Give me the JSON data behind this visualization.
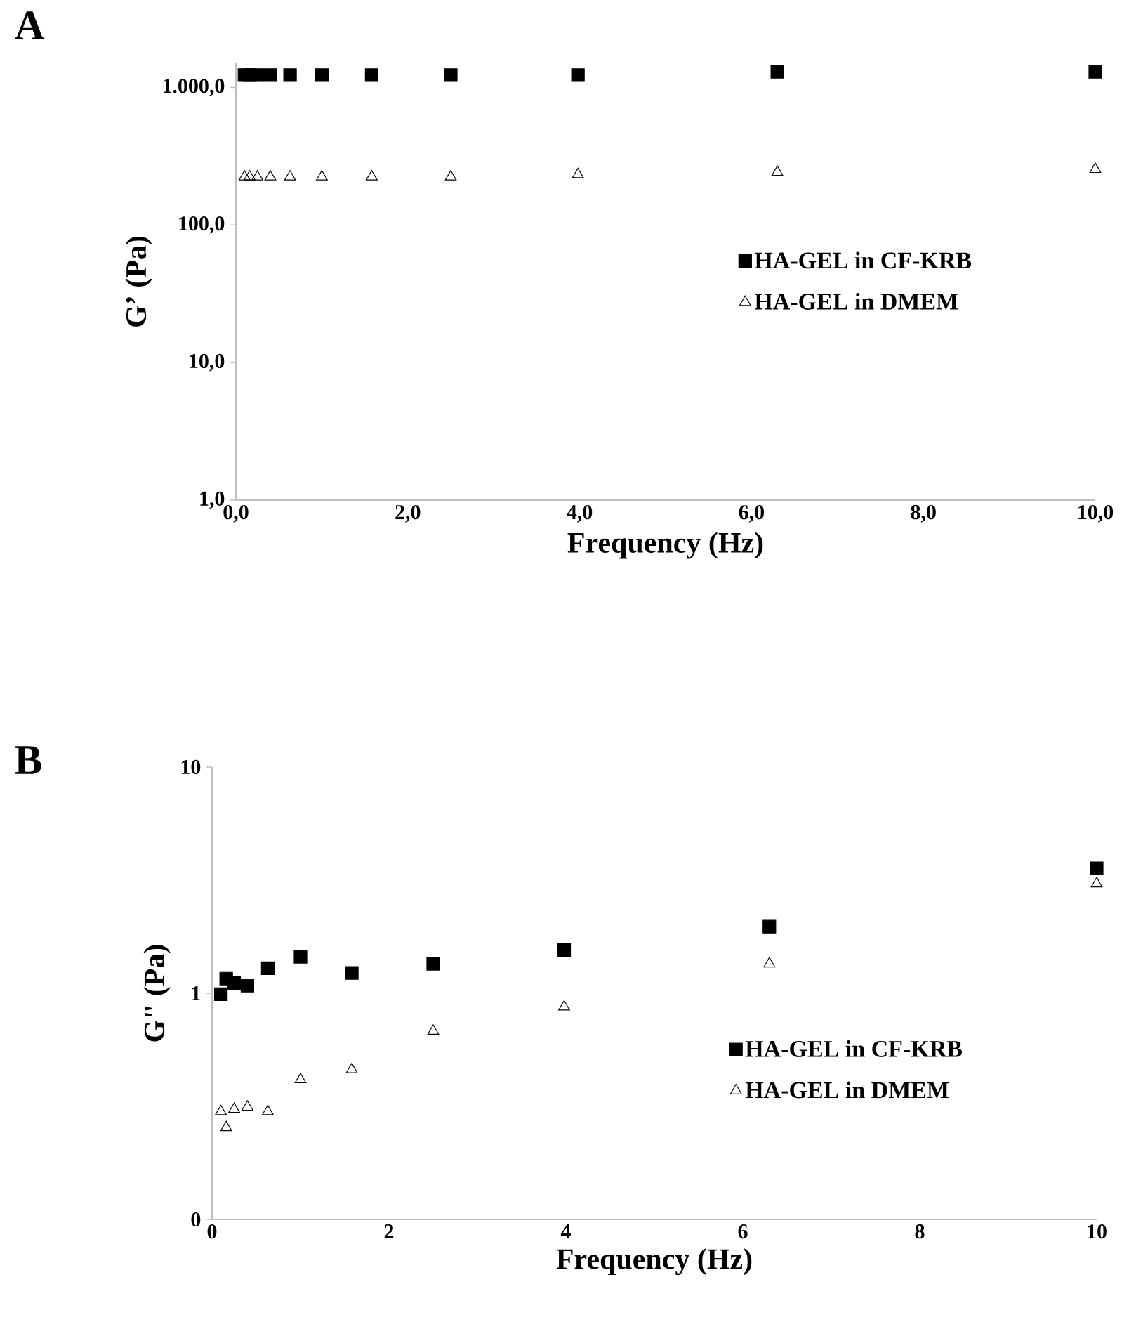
{
  "chart_data": [
    {
      "type": "scatter",
      "title": "A",
      "xlabel": "Frequency (Hz)",
      "ylabel": "G’ (Pa)",
      "log": "y",
      "legend": "right",
      "grid": false,
      "x": [
        0.1,
        0.16,
        0.25,
        0.4,
        0.63,
        1,
        1.58,
        2.5,
        3.98,
        6.3,
        10
      ],
      "xlim": [
        0,
        10
      ],
      "xticks": [
        {
          "value": 0,
          "label": "0,0"
        },
        {
          "value": 2,
          "label": "2,0"
        },
        {
          "value": 4,
          "label": "4,0"
        },
        {
          "value": 6,
          "label": "6,0"
        },
        {
          "value": 8,
          "label": "8,0"
        },
        {
          "value": 10,
          "label": "10,0"
        }
      ],
      "ylim": [
        1,
        1500
      ],
      "yticks": [
        {
          "value": 1,
          "label": "1,0"
        },
        {
          "value": 10,
          "label": "10,0"
        },
        {
          "value": 100,
          "label": "100,0"
        },
        {
          "value": 1000,
          "label": "1.000,0"
        }
      ],
      "series": [
        {
          "name": "HA-GEL in CF-KRB",
          "color": "#000000",
          "marker": "square",
          "values": [
            1230,
            1230,
            1230,
            1230,
            1230,
            1230,
            1230,
            1230,
            1230,
            1300,
            1300
          ]
        },
        {
          "name": "HA-GEL in DMEM",
          "color": "#000000",
          "marker": "triangle",
          "values": [
            224,
            224,
            224,
            224,
            224,
            224,
            224,
            224,
            233,
            242,
            254
          ]
        }
      ]
    },
    {
      "type": "scatter",
      "title": "B",
      "xlabel": "Frequency (Hz)",
      "ylabel": "G\" (Pa)",
      "log": "y",
      "legend": "right",
      "grid": false,
      "x": [
        0.1,
        0.16,
        0.25,
        0.4,
        0.63,
        1,
        1.58,
        2.5,
        3.98,
        6.3,
        10
      ],
      "xlim": [
        0,
        10
      ],
      "xticks": [
        0,
        2,
        4,
        6,
        8,
        10
      ],
      "ylim": [
        0.1,
        10
      ],
      "yticks": [
        {
          "value": 0.1,
          "label": "0"
        },
        1,
        10
      ],
      "series": [
        {
          "name": "HA-GEL in CF-KRB",
          "color": "#000000",
          "marker": "square",
          "values": [
            0.99,
            1.16,
            1.11,
            1.08,
            1.29,
            1.45,
            1.23,
            1.35,
            1.55,
            1.97,
            3.57
          ]
        },
        {
          "name": "HA-GEL in DMEM",
          "color": "#000000",
          "marker": "triangle",
          "values": [
            0.3,
            0.255,
            0.307,
            0.314,
            0.3,
            0.415,
            0.46,
            0.68,
            0.87,
            1.35,
            3.05
          ]
        }
      ]
    }
  ]
}
